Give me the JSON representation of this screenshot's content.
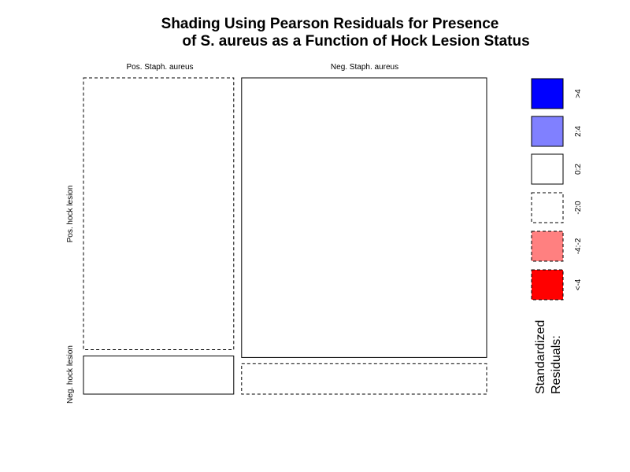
{
  "chart_data": {
    "type": "mosaic",
    "title_lines": [
      "Shading Using Pearson Residuals for Presence",
      "of S. aureus as a Function of Hock Lesion Status"
    ],
    "column_variable_levels": [
      "Pos. Staph. aureus",
      "Neg. Staph. aureus"
    ],
    "row_variable_levels": [
      "Pos. hock lesion",
      "Neg. hock lesion"
    ],
    "column_proportions": [
      0.38,
      0.62
    ],
    "cells": [
      {
        "column": "Pos. Staph. aureus",
        "row": "Pos. hock lesion",
        "proportion_within_column": 0.877,
        "residual_band": "-2:0"
      },
      {
        "column": "Pos. Staph. aureus",
        "row": "Neg. hock lesion",
        "proportion_within_column": 0.123,
        "residual_band": "0:2"
      },
      {
        "column": "Neg. Staph. aureus",
        "row": "Pos. hock lesion",
        "proportion_within_column": 0.902,
        "residual_band": "0:2"
      },
      {
        "column": "Neg. Staph. aureus",
        "row": "Neg. hock lesion",
        "proportion_within_column": 0.098,
        "residual_band": "-2:0"
      }
    ],
    "legend": {
      "title_lines": [
        "Standardized",
        "Residuals:"
      ],
      "items": [
        {
          "label": ">4",
          "color": "#0000ff",
          "dashed": false
        },
        {
          "label": "2:4",
          "color": "#8080ff",
          "dashed": false
        },
        {
          "label": "0:2",
          "color": "#ffffff",
          "dashed": false
        },
        {
          "label": "-2:0",
          "color": "#ffffff",
          "dashed": true
        },
        {
          "label": "-4:-2",
          "color": "#ff8080",
          "dashed": true
        },
        {
          "label": "<-4",
          "color": "#ff0000",
          "dashed": true
        }
      ]
    }
  }
}
